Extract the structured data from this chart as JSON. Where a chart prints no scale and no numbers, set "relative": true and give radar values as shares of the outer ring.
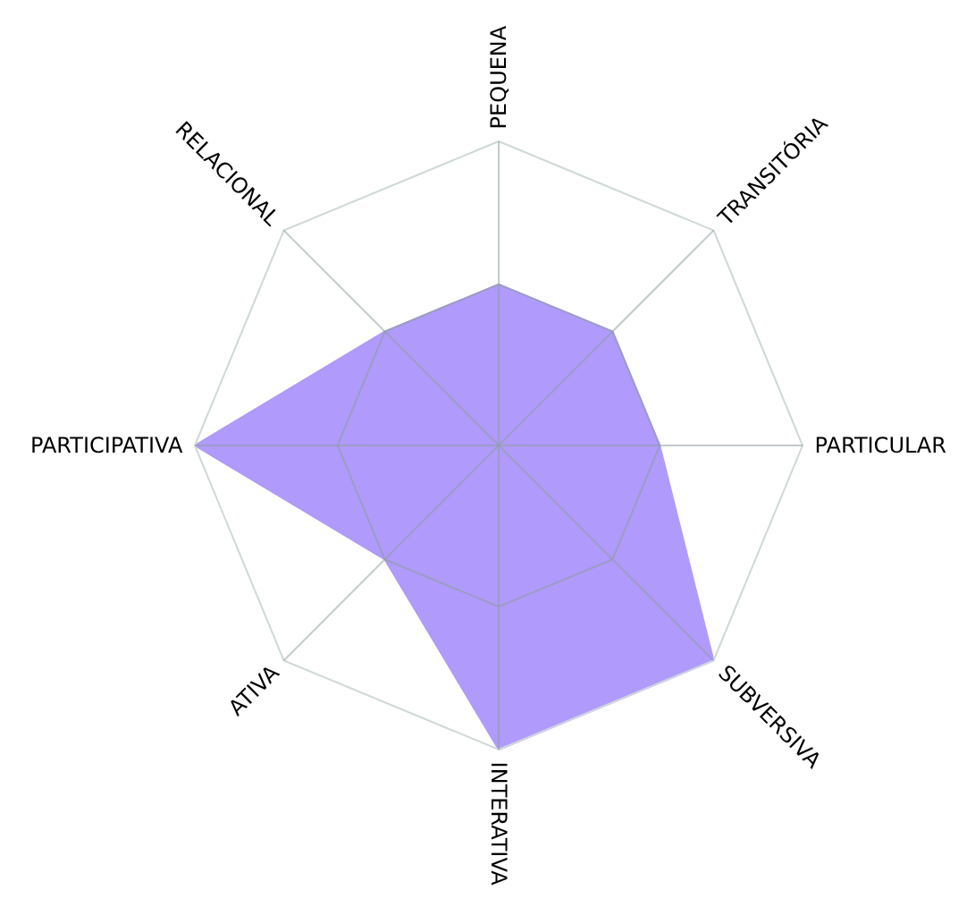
{
  "chart_data": {
    "type": "radar",
    "relative": true,
    "grid": true,
    "categories": [
      "PEQUENA",
      "TRANSITÓRIA",
      "PARTICULAR",
      "SUBVERSIVA",
      "INTERATIVA",
      "ATIVA",
      "PARTICIPATIVA",
      "RELACIONAL"
    ],
    "series": [
      {
        "color": "#b09afc",
        "values": [
          0.53,
          0.53,
          0.53,
          1,
          1,
          0.53,
          1,
          0.53
        ]
      }
    ]
  }
}
